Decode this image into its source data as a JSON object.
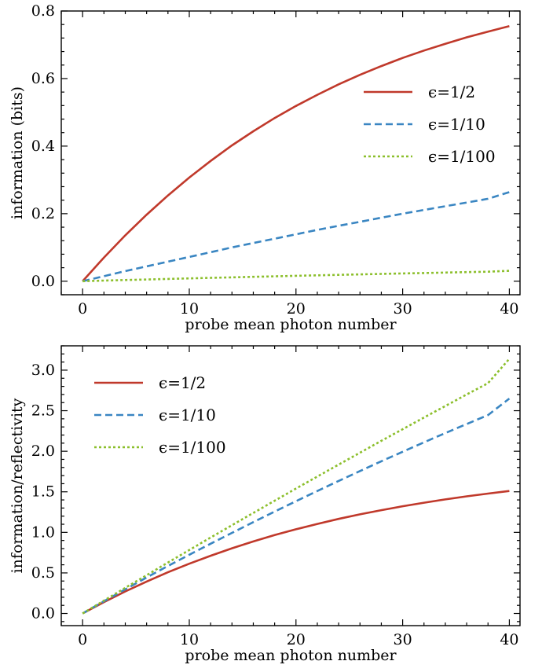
{
  "chart_data": [
    {
      "type": "line",
      "title": "",
      "xlabel": "probe mean photon number",
      "ylabel": "information (bits)",
      "xlim": [
        -2,
        41
      ],
      "ylim": [
        -0.04,
        0.8
      ],
      "xticks": [
        0,
        10,
        20,
        30,
        40
      ],
      "xtick_labels": [
        "0",
        "10",
        "20",
        "30",
        "40"
      ],
      "yticks": [
        0.0,
        0.2,
        0.4,
        0.6,
        0.8
      ],
      "ytick_labels": [
        "0.0",
        "0.2",
        "0.4",
        "0.6",
        "0.8"
      ],
      "grid": false,
      "legend_position": "right",
      "x": [
        0,
        2,
        4,
        6,
        8,
        10,
        12,
        14,
        16,
        18,
        20,
        22,
        24,
        26,
        28,
        30,
        32,
        34,
        36,
        38,
        40
      ],
      "series": [
        {
          "name": "ϵ=1/2",
          "color": "#c0392b",
          "dash": "solid",
          "values": [
            0.0,
            0.07,
            0.136,
            0.197,
            0.254,
            0.307,
            0.356,
            0.402,
            0.444,
            0.483,
            0.519,
            0.552,
            0.583,
            0.611,
            0.637,
            0.661,
            0.683,
            0.703,
            0.722,
            0.739,
            0.755
          ]
        },
        {
          "name": "ϵ=1/10",
          "color": "#3a86c2",
          "dash": "dashed",
          "values": [
            0.0,
            0.015,
            0.03,
            0.044,
            0.058,
            0.072,
            0.086,
            0.1,
            0.113,
            0.126,
            0.139,
            0.152,
            0.164,
            0.176,
            0.188,
            0.2,
            0.211,
            0.222,
            0.233,
            0.244,
            0.264
          ]
        },
        {
          "name": "ϵ=1/100",
          "color": "#8cbf2c",
          "dash": "dotted",
          "values": [
            0.0,
            0.0018,
            0.0035,
            0.0052,
            0.0068,
            0.0084,
            0.01,
            0.0115,
            0.013,
            0.0145,
            0.016,
            0.0174,
            0.0188,
            0.0202,
            0.0216,
            0.023,
            0.0243,
            0.0256,
            0.0269,
            0.0282,
            0.031
          ]
        }
      ]
    },
    {
      "type": "line",
      "title": "",
      "xlabel": "probe mean photon number",
      "ylabel": "information/reflectivity",
      "xlim": [
        -2,
        41
      ],
      "ylim": [
        -0.15,
        3.3
      ],
      "xticks": [
        0,
        10,
        20,
        30,
        40
      ],
      "xtick_labels": [
        "0",
        "10",
        "20",
        "30",
        "40"
      ],
      "yticks": [
        0.0,
        0.5,
        1.0,
        1.5,
        2.0,
        2.5,
        3.0
      ],
      "ytick_labels": [
        "0.0",
        "0.5",
        "1.0",
        "1.5",
        "2.0",
        "2.5",
        "3.0"
      ],
      "grid": false,
      "legend_position": "top-left",
      "x": [
        0,
        2,
        4,
        6,
        8,
        10,
        12,
        14,
        16,
        18,
        20,
        22,
        24,
        26,
        28,
        30,
        32,
        34,
        36,
        38,
        40
      ],
      "series": [
        {
          "name": "ϵ=1/2",
          "color": "#c0392b",
          "dash": "solid",
          "values": [
            0.0,
            0.14,
            0.272,
            0.394,
            0.508,
            0.614,
            0.712,
            0.804,
            0.888,
            0.966,
            1.038,
            1.104,
            1.166,
            1.222,
            1.274,
            1.322,
            1.366,
            1.406,
            1.444,
            1.478,
            1.51
          ]
        },
        {
          "name": "ϵ=1/10",
          "color": "#3a86c2",
          "dash": "dashed",
          "values": [
            0.0,
            0.15,
            0.298,
            0.444,
            0.586,
            0.724,
            0.86,
            0.994,
            1.126,
            1.256,
            1.384,
            1.51,
            1.634,
            1.756,
            1.876,
            1.994,
            2.11,
            2.224,
            2.336,
            2.446,
            2.65
          ]
        },
        {
          "name": "ϵ=1/100",
          "color": "#8cbf2c",
          "dash": "dotted",
          "values": [
            0.0,
            0.158,
            0.316,
            0.472,
            0.628,
            0.782,
            0.936,
            1.088,
            1.24,
            1.39,
            1.54,
            1.688,
            1.836,
            1.982,
            2.128,
            2.272,
            2.416,
            2.558,
            2.7,
            2.84,
            3.14
          ]
        }
      ]
    }
  ]
}
